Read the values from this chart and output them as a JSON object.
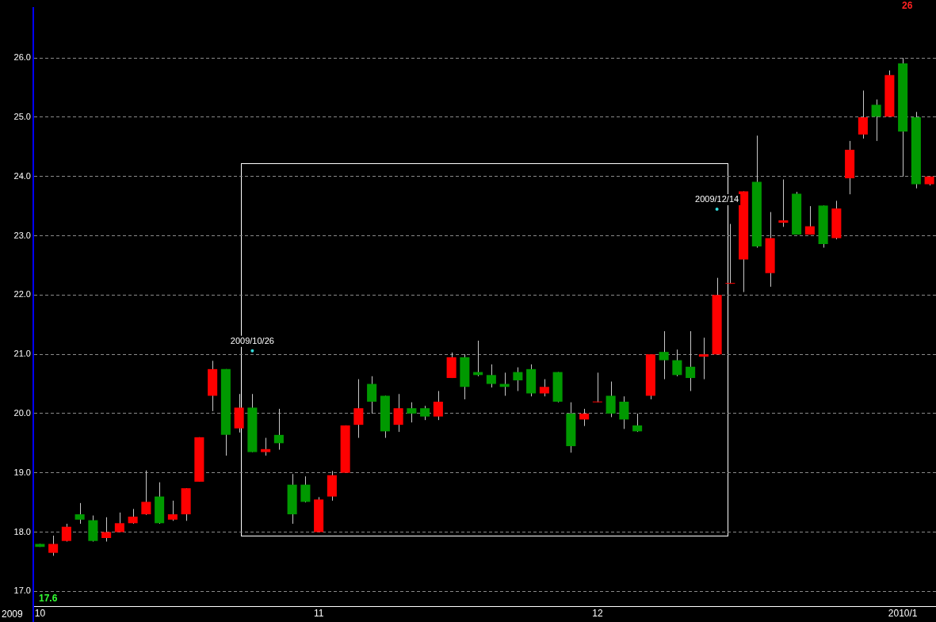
{
  "chart_data": {
    "type": "candlestick",
    "categories": [
      "10",
      null,
      null,
      null,
      null,
      null,
      null,
      null,
      null,
      null,
      null,
      null,
      null,
      null,
      null,
      null,
      null,
      null,
      null,
      null,
      null,
      "11",
      null,
      null,
      null,
      null,
      null,
      null,
      null,
      null,
      null,
      null,
      null,
      null,
      null,
      null,
      null,
      null,
      null,
      null,
      null,
      null,
      "12",
      null,
      null,
      null,
      null,
      null,
      null,
      null,
      null,
      null,
      null,
      null,
      null,
      null,
      null,
      null,
      null,
      null,
      null,
      null,
      null,
      null,
      null,
      "2010/1",
      null,
      null
    ],
    "ohlc": [
      [
        17.8,
        17.8,
        17.75,
        17.75
      ],
      [
        17.65,
        17.94,
        17.6,
        17.8
      ],
      [
        17.85,
        18.14,
        17.84,
        18.09
      ],
      [
        18.3,
        18.49,
        18.14,
        18.21
      ],
      [
        18.2,
        18.28,
        17.84,
        17.85
      ],
      [
        17.9,
        18.25,
        17.84,
        18.0
      ],
      [
        18.0,
        18.33,
        18.0,
        18.15
      ],
      [
        18.15,
        18.39,
        18.14,
        18.26
      ],
      [
        18.3,
        19.04,
        18.29,
        18.51
      ],
      [
        18.6,
        18.84,
        18.14,
        18.15
      ],
      [
        18.21,
        18.53,
        18.19,
        18.3
      ],
      [
        18.3,
        18.74,
        18.19,
        18.74
      ],
      [
        18.85,
        19.6,
        18.85,
        19.6
      ],
      [
        20.3,
        20.89,
        20.04,
        20.75
      ],
      [
        20.75,
        20.75,
        19.29,
        19.64
      ],
      [
        19.75,
        20.33,
        19.68,
        20.1
      ],
      [
        20.1,
        20.33,
        19.35,
        19.35
      ],
      [
        19.35,
        19.59,
        19.29,
        19.4
      ],
      [
        19.64,
        20.08,
        19.39,
        19.5
      ],
      [
        18.8,
        18.98,
        18.14,
        18.3
      ],
      [
        18.8,
        18.94,
        18.5,
        18.51
      ],
      [
        18.0,
        18.59,
        18.0,
        18.55
      ],
      [
        18.6,
        19.03,
        18.53,
        18.96
      ],
      [
        19.0,
        19.8,
        19.0,
        19.8
      ],
      [
        19.81,
        20.58,
        19.59,
        20.09
      ],
      [
        20.5,
        20.63,
        20.0,
        20.2
      ],
      [
        20.3,
        20.3,
        19.59,
        19.7
      ],
      [
        19.81,
        20.33,
        19.69,
        20.09
      ],
      [
        20.09,
        20.19,
        19.85,
        20.0
      ],
      [
        20.09,
        20.13,
        19.89,
        19.95
      ],
      [
        19.95,
        20.38,
        19.89,
        20.2
      ],
      [
        20.6,
        21.03,
        20.6,
        20.95
      ],
      [
        20.95,
        21.0,
        20.24,
        20.45
      ],
      [
        20.7,
        21.23,
        20.63,
        20.65
      ],
      [
        20.65,
        20.83,
        20.44,
        20.5
      ],
      [
        20.5,
        20.69,
        20.3,
        20.45
      ],
      [
        20.7,
        20.78,
        20.38,
        20.56
      ],
      [
        20.75,
        20.83,
        20.29,
        20.34
      ],
      [
        20.34,
        20.58,
        20.29,
        20.45
      ],
      [
        20.7,
        20.7,
        20.19,
        20.2
      ],
      [
        20.0,
        20.19,
        19.34,
        19.45
      ],
      [
        19.9,
        20.08,
        19.79,
        20.0
      ],
      [
        20.19,
        20.69,
        20.19,
        20.2
      ],
      [
        20.3,
        20.54,
        19.94,
        20.0
      ],
      [
        20.2,
        20.29,
        19.74,
        19.9
      ],
      [
        19.8,
        20.0,
        19.69,
        19.7
      ],
      [
        20.3,
        21.0,
        20.24,
        21.0
      ],
      [
        21.04,
        21.39,
        20.58,
        20.9
      ],
      [
        20.9,
        21.08,
        20.63,
        20.65
      ],
      [
        20.79,
        21.39,
        20.38,
        20.6
      ],
      [
        20.96,
        21.28,
        20.58,
        21.0
      ],
      [
        21.0,
        22.29,
        21.0,
        22.0
      ],
      [
        22.19,
        23.2,
        22.19,
        22.2
      ],
      [
        22.6,
        23.75,
        22.05,
        23.75
      ],
      [
        23.91,
        24.69,
        22.8,
        22.82
      ],
      [
        22.37,
        23.4,
        22.14,
        22.96
      ],
      [
        23.22,
        23.95,
        23.15,
        23.26
      ],
      [
        23.71,
        23.74,
        23.02,
        23.02
      ],
      [
        23.02,
        23.5,
        23.02,
        23.16
      ],
      [
        23.51,
        23.51,
        22.8,
        22.86
      ],
      [
        22.96,
        23.59,
        22.94,
        23.46
      ],
      [
        23.97,
        24.6,
        23.7,
        24.45
      ],
      [
        24.71,
        25.45,
        24.64,
        25.0
      ],
      [
        25.21,
        25.3,
        24.6,
        25.01
      ],
      [
        25.01,
        25.79,
        25.01,
        25.71
      ],
      [
        25.91,
        26.0,
        24.0,
        24.76
      ],
      [
        25.0,
        25.09,
        23.8,
        23.87
      ],
      [
        23.87,
        24.0,
        23.85,
        24.0
      ]
    ],
    "colors": [
      "#009900",
      "#ff0000",
      "#ff0000",
      "#009900",
      "#009900",
      "#ff0000",
      "#ff0000",
      "#ff0000",
      "#ff0000",
      "#009900",
      "#ff0000",
      "#ff0000",
      "#ff0000",
      "#ff0000",
      "#009900",
      "#ff0000",
      "#009900",
      "#ff0000",
      "#009900",
      "#009900",
      "#009900",
      "#ff0000",
      "#ff0000",
      "#ff0000",
      "#ff0000",
      "#009900",
      "#009900",
      "#ff0000",
      "#009900",
      "#009900",
      "#ff0000",
      "#ff0000",
      "#009900",
      "#009900",
      "#009900",
      "#009900",
      "#009900",
      "#009900",
      "#ff0000",
      "#009900",
      "#009900",
      "#ff0000",
      "#ff0000",
      "#009900",
      "#009900",
      "#009900",
      "#ff0000",
      "#009900",
      "#009900",
      "#009900",
      "#ff0000",
      "#ff0000",
      "#ff0000",
      "#ff0000",
      "#009900",
      "#ff0000",
      "#ff0000",
      "#009900",
      "#ff0000",
      "#009900",
      "#ff0000",
      "#ff0000",
      "#ff0000",
      "#009900",
      "#ff0000",
      "#009900",
      "#009900",
      "#ff0000"
    ],
    "ylim": [
      16.75,
      26.85
    ],
    "yticks": [
      {
        "value": 17,
        "label": "17.0"
      },
      {
        "value": 18,
        "label": "18.0"
      },
      {
        "value": 19,
        "label": "19.0"
      },
      {
        "value": 20,
        "label": "20.0"
      },
      {
        "value": 21,
        "label": "21.0"
      },
      {
        "value": 22,
        "label": "22.0"
      },
      {
        "value": 23,
        "label": "23.0"
      },
      {
        "value": 24,
        "label": "24.0"
      },
      {
        "value": 25,
        "label": "25.0"
      },
      {
        "value": 26,
        "label": "26.0"
      }
    ],
    "grid": "y",
    "annotations": [
      "2009",
      "17.6",
      "26",
      "2009/10/26",
      "2009/12/14"
    ]
  }
}
